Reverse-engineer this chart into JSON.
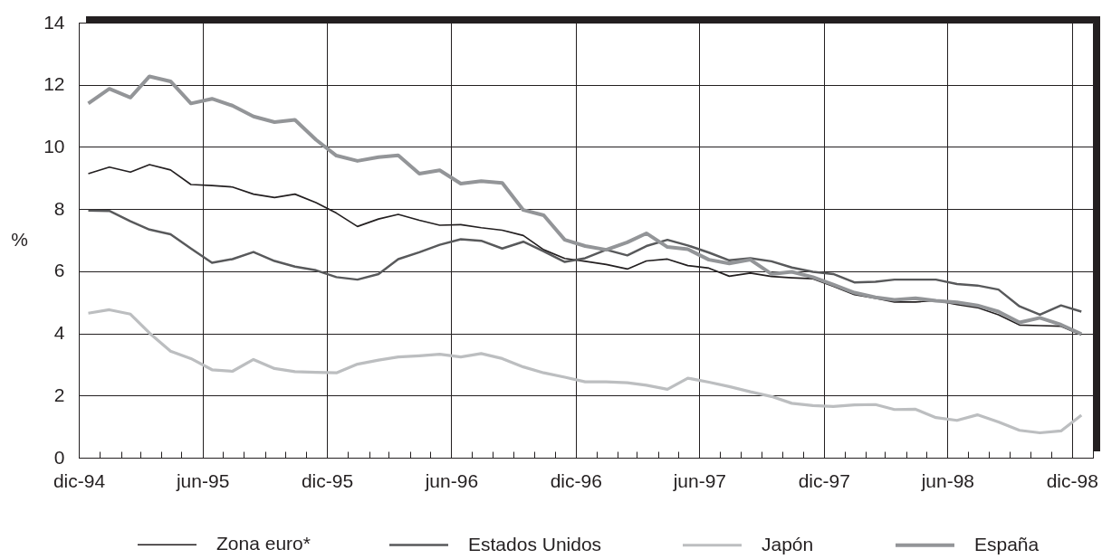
{
  "chart_data": {
    "type": "line",
    "ylabel": "%",
    "legend": "bottom",
    "grid": true,
    "line_style": "solid",
    "x": [
      "1994-12-15",
      "1995-01-15",
      "1995-02-15",
      "1995-03-15",
      "1995-04-15",
      "1995-05-15",
      "1995-06-15",
      "1995-07-15",
      "1995-08-15",
      "1995-09-15",
      "1995-10-15",
      "1995-11-15",
      "1995-12-15",
      "1996-01-15",
      "1996-02-15",
      "1996-03-15",
      "1996-04-15",
      "1996-05-15",
      "1996-06-15",
      "1996-07-15",
      "1996-08-15",
      "1996-09-15",
      "1996-10-15",
      "1996-11-15",
      "1996-12-15",
      "1997-01-15",
      "1997-02-15",
      "1997-03-15",
      "1997-04-15",
      "1997-05-15",
      "1997-06-15",
      "1997-07-15",
      "1997-08-15",
      "1997-09-15",
      "1997-10-15",
      "1997-11-15",
      "1997-12-15",
      "1998-01-15",
      "1998-02-15",
      "1998-03-15",
      "1998-04-15",
      "1998-05-15",
      "1998-06-15",
      "1998-07-15",
      "1998-08-15",
      "1998-09-15",
      "1998-10-15",
      "1998-11-15",
      "1998-12-15"
    ],
    "series": [
      {
        "name": "Zona euro*",
        "color": "#231f20",
        "values": [
          9.14,
          9.35,
          9.19,
          9.43,
          9.26,
          8.79,
          8.76,
          8.71,
          8.48,
          8.37,
          8.48,
          8.21,
          7.87,
          7.44,
          7.68,
          7.83,
          7.64,
          7.48,
          7.5,
          7.4,
          7.32,
          7.15,
          6.69,
          6.41,
          6.32,
          6.22,
          6.07,
          6.33,
          6.39,
          6.18,
          6.1,
          5.84,
          5.94,
          5.83,
          5.79,
          5.76,
          5.52,
          5.25,
          5.13,
          5.01,
          5.01,
          5.06,
          4.93,
          4.83,
          4.6,
          4.27,
          4.25,
          4.23,
          3.95
        ]
      },
      {
        "name": "Estados Unidos",
        "color": "#58595b",
        "values": [
          7.95,
          7.94,
          7.61,
          7.34,
          7.19,
          6.73,
          6.27,
          6.39,
          6.62,
          6.33,
          6.15,
          6.03,
          5.81,
          5.73,
          5.91,
          6.39,
          6.61,
          6.85,
          7.03,
          6.98,
          6.73,
          6.95,
          6.64,
          6.3,
          6.42,
          6.69,
          6.51,
          6.81,
          7.01,
          6.83,
          6.6,
          6.35,
          6.42,
          6.32,
          6.12,
          5.98,
          5.91,
          5.64,
          5.66,
          5.73,
          5.73,
          5.73,
          5.59,
          5.54,
          5.41,
          4.87,
          4.6,
          4.9,
          4.7
        ]
      },
      {
        "name": "Japón",
        "color": "#bcbec0",
        "values": [
          4.65,
          4.76,
          4.62,
          4.01,
          3.43,
          3.19,
          2.83,
          2.78,
          3.16,
          2.87,
          2.77,
          2.75,
          2.73,
          3.01,
          3.14,
          3.24,
          3.28,
          3.33,
          3.24,
          3.35,
          3.19,
          2.92,
          2.73,
          2.59,
          2.44,
          2.44,
          2.41,
          2.33,
          2.2,
          2.56,
          2.43,
          2.29,
          2.12,
          1.97,
          1.75,
          1.68,
          1.65,
          1.7,
          1.71,
          1.55,
          1.56,
          1.29,
          1.2,
          1.38,
          1.15,
          0.88,
          0.8,
          0.86,
          1.37
        ]
      },
      {
        "name": "España",
        "color": "#939598",
        "values": [
          11.4,
          11.87,
          11.59,
          12.27,
          12.11,
          11.4,
          11.55,
          11.33,
          10.98,
          10.8,
          10.87,
          10.23,
          9.72,
          9.55,
          9.67,
          9.73,
          9.14,
          9.25,
          8.82,
          8.9,
          8.84,
          7.97,
          7.8,
          7.01,
          6.81,
          6.69,
          6.93,
          7.22,
          6.78,
          6.71,
          6.37,
          6.25,
          6.37,
          5.91,
          5.98,
          5.81,
          5.57,
          5.31,
          5.16,
          5.08,
          5.13,
          5.05,
          5.0,
          4.9,
          4.7,
          4.35,
          4.5,
          4.28,
          3.98
        ]
      }
    ],
    "xlim": [
      "1994-12-01",
      "1999-01-01"
    ],
    "xticks": [
      {
        "value": "1994-12-01",
        "label": "dic-94"
      },
      {
        "value": "1995-01-01",
        "label": null
      },
      {
        "value": "1995-02-01",
        "label": null
      },
      {
        "value": "1995-03-01",
        "label": null
      },
      {
        "value": "1995-04-01",
        "label": null
      },
      {
        "value": "1995-05-01",
        "label": null
      },
      {
        "value": "1995-06-01",
        "label": "jun-95"
      },
      {
        "value": "1995-07-01",
        "label": null
      },
      {
        "value": "1995-08-01",
        "label": null
      },
      {
        "value": "1995-09-01",
        "label": null
      },
      {
        "value": "1995-10-01",
        "label": null
      },
      {
        "value": "1995-11-01",
        "label": null
      },
      {
        "value": "1995-12-01",
        "label": "dic-95"
      },
      {
        "value": "1996-01-01",
        "label": null
      },
      {
        "value": "1996-02-01",
        "label": null
      },
      {
        "value": "1996-03-01",
        "label": null
      },
      {
        "value": "1996-04-01",
        "label": null
      },
      {
        "value": "1996-05-01",
        "label": null
      },
      {
        "value": "1996-06-01",
        "label": "jun-96"
      },
      {
        "value": "1996-07-01",
        "label": null
      },
      {
        "value": "1996-08-01",
        "label": null
      },
      {
        "value": "1996-09-01",
        "label": null
      },
      {
        "value": "1996-10-01",
        "label": null
      },
      {
        "value": "1996-11-01",
        "label": null
      },
      {
        "value": "1996-12-01",
        "label": "dic-96"
      },
      {
        "value": "1997-01-01",
        "label": null
      },
      {
        "value": "1997-02-01",
        "label": null
      },
      {
        "value": "1997-03-01",
        "label": null
      },
      {
        "value": "1997-04-01",
        "label": null
      },
      {
        "value": "1997-05-01",
        "label": null
      },
      {
        "value": "1997-06-01",
        "label": "jun-97"
      },
      {
        "value": "1997-07-01",
        "label": null
      },
      {
        "value": "1997-08-01",
        "label": null
      },
      {
        "value": "1997-09-01",
        "label": null
      },
      {
        "value": "1997-10-01",
        "label": null
      },
      {
        "value": "1997-11-01",
        "label": null
      },
      {
        "value": "1997-12-01",
        "label": "dic-97"
      },
      {
        "value": "1998-01-01",
        "label": null
      },
      {
        "value": "1998-02-01",
        "label": null
      },
      {
        "value": "1998-03-01",
        "label": null
      },
      {
        "value": "1998-04-01",
        "label": null
      },
      {
        "value": "1998-05-01",
        "label": null
      },
      {
        "value": "1998-06-01",
        "label": "jun-98"
      },
      {
        "value": "1998-07-01",
        "label": null
      },
      {
        "value": "1998-08-01",
        "label": null
      },
      {
        "value": "1998-09-01",
        "label": null
      },
      {
        "value": "1998-10-01",
        "label": null
      },
      {
        "value": "1998-11-01",
        "label": null
      },
      {
        "value": "1998-12-01",
        "label": "dic-98"
      }
    ],
    "ylim": [
      0,
      14
    ],
    "yticks": [
      0,
      2,
      4,
      6,
      8,
      10,
      12,
      14
    ]
  }
}
